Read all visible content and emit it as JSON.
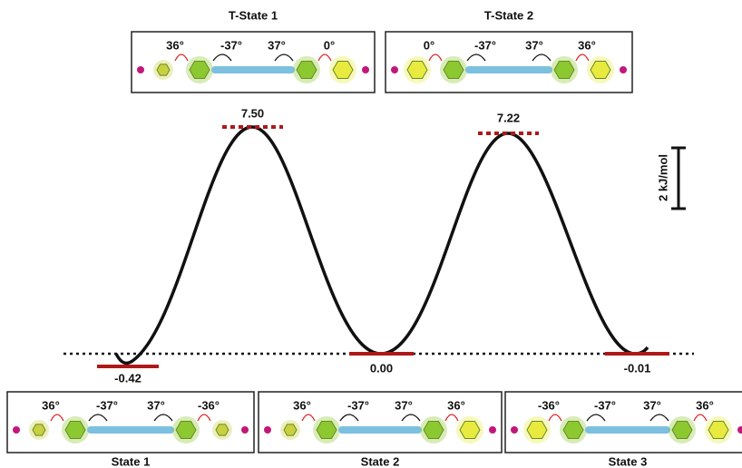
{
  "transition_states": [
    {
      "title": "T-State 1",
      "angles": [
        "36°",
        "-37°",
        "37°",
        "0°"
      ],
      "energy": "7.50"
    },
    {
      "title": "T-State 2",
      "angles": [
        "0°",
        "-37°",
        "37°",
        "36°"
      ],
      "energy": "7.22"
    }
  ],
  "states": [
    {
      "label": "State 1",
      "angles": [
        "36°",
        "-37°",
        "37°",
        "-36°"
      ],
      "energy": "-0.42"
    },
    {
      "label": "State 2",
      "angles": [
        "36°",
        "-37°",
        "37°",
        "36°"
      ],
      "energy": "0.00"
    },
    {
      "label": "State 3",
      "angles": [
        "-36°",
        "-37°",
        "37°",
        "36°"
      ],
      "energy": "-0.01"
    }
  ],
  "scale_bar": "2 kJ/mol"
}
